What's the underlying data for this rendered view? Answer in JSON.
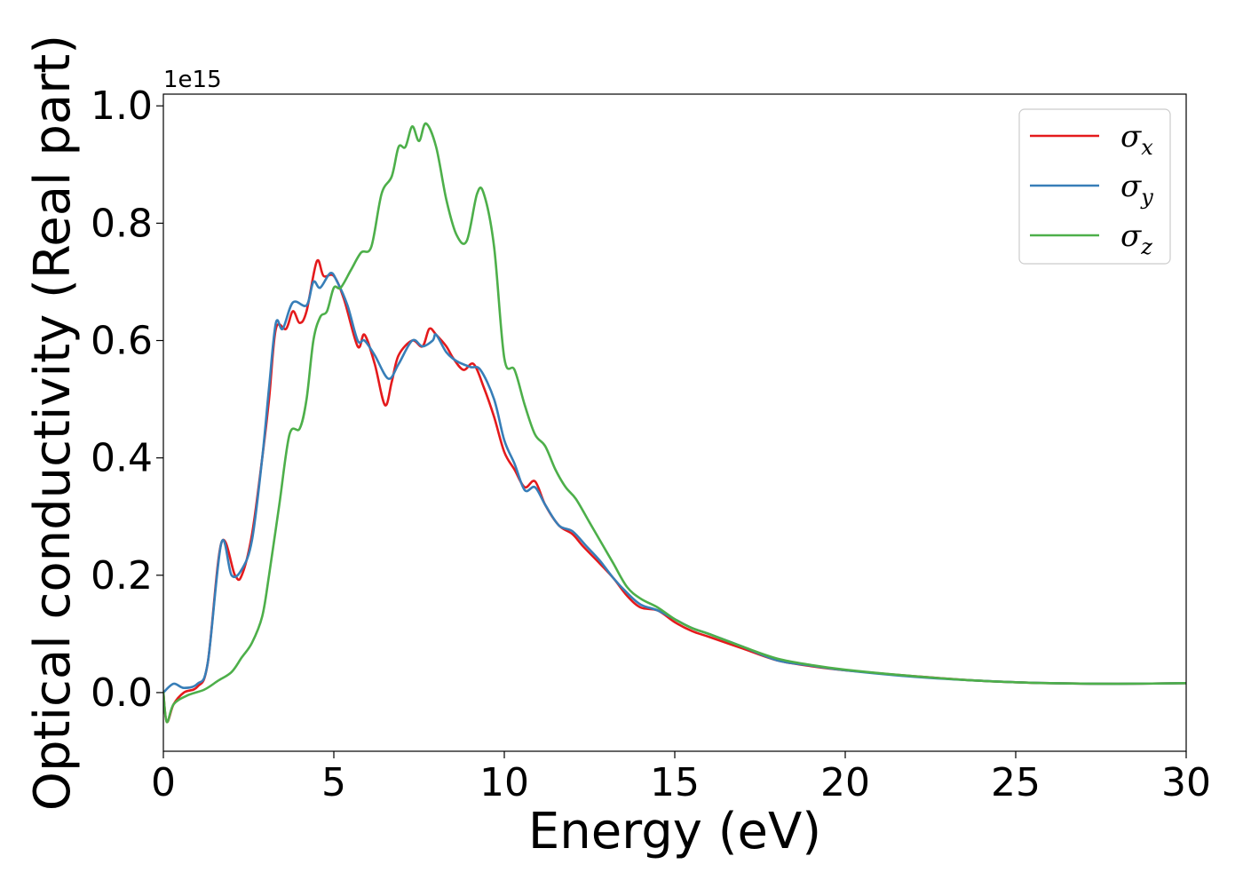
{
  "chart_data": {
    "type": "line",
    "title": "",
    "xlabel": "Energy (eV)",
    "ylabel": "Optical conductivity (Real part)",
    "y_offset_label": "1e15",
    "xlim": [
      0,
      30
    ],
    "ylim": [
      -0.1,
      1.02
    ],
    "xticks": [
      0,
      5,
      10,
      15,
      20,
      25,
      30
    ],
    "xtick_labels": [
      "0",
      "5",
      "10",
      "15",
      "20",
      "25",
      "30"
    ],
    "yticks": [
      0.0,
      0.2,
      0.4,
      0.6,
      0.8,
      1.0
    ],
    "ytick_labels": [
      "0.0",
      "0.2",
      "0.4",
      "0.6",
      "0.8",
      "1.0"
    ],
    "grid": false,
    "legend_position": "top-right",
    "series": [
      {
        "name": "σ_x",
        "legend": {
          "base": "σ",
          "sub": "x"
        },
        "color": "#e41a1c",
        "points": [
          [
            0,
            0.0
          ],
          [
            0.1,
            -0.05
          ],
          [
            0.3,
            -0.02
          ],
          [
            0.6,
            0.0
          ],
          [
            1.0,
            0.01
          ],
          [
            1.3,
            0.05
          ],
          [
            1.7,
            0.255
          ],
          [
            2.1,
            0.2
          ],
          [
            2.3,
            0.2
          ],
          [
            2.6,
            0.27
          ],
          [
            2.9,
            0.4
          ],
          [
            3.1,
            0.5
          ],
          [
            3.3,
            0.62
          ],
          [
            3.6,
            0.62
          ],
          [
            3.8,
            0.65
          ],
          [
            4.0,
            0.63
          ],
          [
            4.2,
            0.65
          ],
          [
            4.5,
            0.735
          ],
          [
            4.7,
            0.71
          ],
          [
            5.0,
            0.71
          ],
          [
            5.3,
            0.67
          ],
          [
            5.7,
            0.59
          ],
          [
            5.9,
            0.61
          ],
          [
            6.2,
            0.56
          ],
          [
            6.5,
            0.49
          ],
          [
            6.7,
            0.53
          ],
          [
            6.9,
            0.575
          ],
          [
            7.3,
            0.6
          ],
          [
            7.6,
            0.59
          ],
          [
            7.8,
            0.62
          ],
          [
            8.0,
            0.61
          ],
          [
            8.3,
            0.59
          ],
          [
            8.5,
            0.57
          ],
          [
            8.8,
            0.55
          ],
          [
            9.1,
            0.56
          ],
          [
            9.4,
            0.52
          ],
          [
            9.7,
            0.47
          ],
          [
            10.0,
            0.41
          ],
          [
            10.3,
            0.38
          ],
          [
            10.6,
            0.35
          ],
          [
            10.9,
            0.36
          ],
          [
            11.2,
            0.32
          ],
          [
            11.6,
            0.285
          ],
          [
            12.0,
            0.27
          ],
          [
            12.3,
            0.25
          ],
          [
            12.8,
            0.22
          ],
          [
            13.2,
            0.195
          ],
          [
            13.6,
            0.165
          ],
          [
            14.0,
            0.145
          ],
          [
            14.5,
            0.14
          ],
          [
            15.0,
            0.12
          ],
          [
            15.5,
            0.105
          ],
          [
            16.0,
            0.095
          ],
          [
            17.0,
            0.075
          ],
          [
            18.0,
            0.055
          ],
          [
            19.0,
            0.045
          ],
          [
            20.0,
            0.038
          ],
          [
            22.0,
            0.028
          ],
          [
            24.0,
            0.02
          ],
          [
            26.0,
            0.016
          ],
          [
            28.0,
            0.015
          ],
          [
            30.0,
            0.016
          ]
        ]
      },
      {
        "name": "σ_y",
        "legend": {
          "base": "σ",
          "sub": "y"
        },
        "color": "#377eb8",
        "points": [
          [
            0,
            0.0
          ],
          [
            0.3,
            0.015
          ],
          [
            0.6,
            0.008
          ],
          [
            1.0,
            0.015
          ],
          [
            1.3,
            0.05
          ],
          [
            1.7,
            0.255
          ],
          [
            2.0,
            0.2
          ],
          [
            2.3,
            0.21
          ],
          [
            2.6,
            0.26
          ],
          [
            2.9,
            0.4
          ],
          [
            3.1,
            0.52
          ],
          [
            3.3,
            0.63
          ],
          [
            3.5,
            0.62
          ],
          [
            3.8,
            0.665
          ],
          [
            4.2,
            0.66
          ],
          [
            4.4,
            0.7
          ],
          [
            4.6,
            0.69
          ],
          [
            4.9,
            0.715
          ],
          [
            5.1,
            0.7
          ],
          [
            5.4,
            0.66
          ],
          [
            5.7,
            0.6
          ],
          [
            5.9,
            0.6
          ],
          [
            6.2,
            0.575
          ],
          [
            6.6,
            0.535
          ],
          [
            6.9,
            0.56
          ],
          [
            7.3,
            0.6
          ],
          [
            7.6,
            0.59
          ],
          [
            7.9,
            0.6
          ],
          [
            8.0,
            0.61
          ],
          [
            8.3,
            0.58
          ],
          [
            8.6,
            0.565
          ],
          [
            9.0,
            0.555
          ],
          [
            9.3,
            0.55
          ],
          [
            9.7,
            0.5
          ],
          [
            10.0,
            0.43
          ],
          [
            10.3,
            0.39
          ],
          [
            10.6,
            0.345
          ],
          [
            10.9,
            0.35
          ],
          [
            11.2,
            0.32
          ],
          [
            11.6,
            0.285
          ],
          [
            12.0,
            0.275
          ],
          [
            12.4,
            0.25
          ],
          [
            12.8,
            0.225
          ],
          [
            13.2,
            0.195
          ],
          [
            13.6,
            0.17
          ],
          [
            14.0,
            0.15
          ],
          [
            14.5,
            0.14
          ],
          [
            15.0,
            0.125
          ],
          [
            15.5,
            0.11
          ],
          [
            16.0,
            0.1
          ],
          [
            17.0,
            0.078
          ],
          [
            18.0,
            0.055
          ],
          [
            19.0,
            0.046
          ],
          [
            20.0,
            0.038
          ],
          [
            22.0,
            0.027
          ],
          [
            24.0,
            0.02
          ],
          [
            26.0,
            0.016
          ],
          [
            28.0,
            0.015
          ],
          [
            30.0,
            0.016
          ]
        ]
      },
      {
        "name": "σ_z",
        "legend": {
          "base": "σ",
          "sub": "z"
        },
        "color": "#4daf4a",
        "points": [
          [
            0,
            0.0
          ],
          [
            0.1,
            -0.05
          ],
          [
            0.3,
            -0.02
          ],
          [
            0.7,
            -0.005
          ],
          [
            1.2,
            0.005
          ],
          [
            1.6,
            0.02
          ],
          [
            2.0,
            0.035
          ],
          [
            2.3,
            0.06
          ],
          [
            2.6,
            0.085
          ],
          [
            2.9,
            0.13
          ],
          [
            3.1,
            0.2
          ],
          [
            3.4,
            0.32
          ],
          [
            3.7,
            0.44
          ],
          [
            4.0,
            0.45
          ],
          [
            4.2,
            0.5
          ],
          [
            4.4,
            0.6
          ],
          [
            4.6,
            0.64
          ],
          [
            4.8,
            0.65
          ],
          [
            5.0,
            0.69
          ],
          [
            5.2,
            0.69
          ],
          [
            5.5,
            0.72
          ],
          [
            5.8,
            0.75
          ],
          [
            6.1,
            0.76
          ],
          [
            6.4,
            0.85
          ],
          [
            6.7,
            0.88
          ],
          [
            6.9,
            0.93
          ],
          [
            7.1,
            0.93
          ],
          [
            7.3,
            0.965
          ],
          [
            7.5,
            0.94
          ],
          [
            7.7,
            0.97
          ],
          [
            8.0,
            0.93
          ],
          [
            8.3,
            0.84
          ],
          [
            8.6,
            0.78
          ],
          [
            8.9,
            0.77
          ],
          [
            9.2,
            0.85
          ],
          [
            9.4,
            0.85
          ],
          [
            9.7,
            0.76
          ],
          [
            10.0,
            0.57
          ],
          [
            10.3,
            0.55
          ],
          [
            10.6,
            0.49
          ],
          [
            10.9,
            0.44
          ],
          [
            11.2,
            0.42
          ],
          [
            11.5,
            0.38
          ],
          [
            11.8,
            0.35
          ],
          [
            12.1,
            0.33
          ],
          [
            12.5,
            0.29
          ],
          [
            12.9,
            0.25
          ],
          [
            13.2,
            0.22
          ],
          [
            13.6,
            0.18
          ],
          [
            14.0,
            0.16
          ],
          [
            14.5,
            0.145
          ],
          [
            15.0,
            0.125
          ],
          [
            15.5,
            0.11
          ],
          [
            16.0,
            0.1
          ],
          [
            17.0,
            0.078
          ],
          [
            18.0,
            0.058
          ],
          [
            19.0,
            0.047
          ],
          [
            20.0,
            0.039
          ],
          [
            22.0,
            0.028
          ],
          [
            24.0,
            0.02
          ],
          [
            26.0,
            0.016
          ],
          [
            28.0,
            0.015
          ],
          [
            30.0,
            0.016
          ]
        ]
      }
    ]
  }
}
